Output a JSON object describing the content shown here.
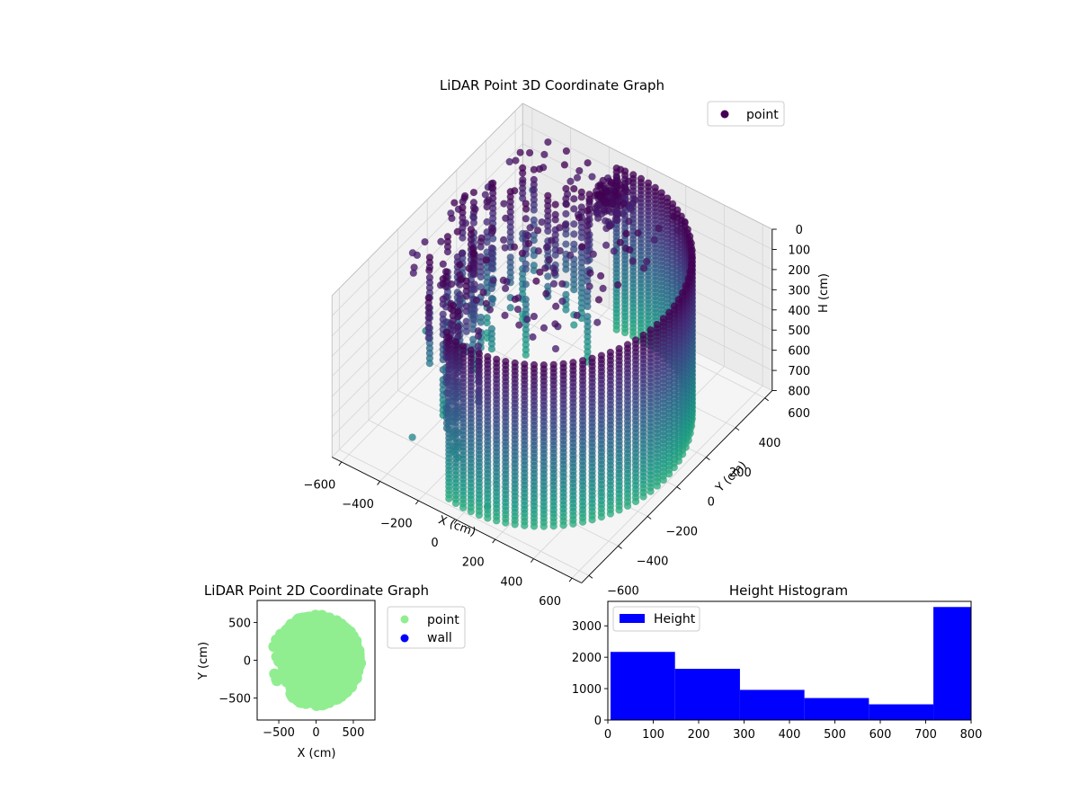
{
  "chart_data": [
    {
      "type": "scatter",
      "projection": "3d",
      "title": "LiDAR Point 3D Coordinate Graph",
      "xlabel": "X (cm)",
      "ylabel": "Y (cm)",
      "zlabel": "H (cm)",
      "xticks": [
        -600,
        -400,
        -200,
        0,
        200,
        400,
        600
      ],
      "yticks": [
        -600,
        -400,
        -200,
        0,
        200,
        400,
        600
      ],
      "zticks": [
        0,
        100,
        200,
        300,
        400,
        500,
        600,
        700,
        800
      ],
      "xlim": [
        -650,
        650
      ],
      "ylim": [
        -650,
        650
      ],
      "zlim": [
        0,
        800
      ],
      "z_inverted": true,
      "colormap": "viridis",
      "legend": {
        "entries": [
          "point"
        ],
        "position": "upper right",
        "colors": [
          "#440154"
        ]
      },
      "grid": true,
      "structure": {
        "main_wall_radius_cm": 580,
        "main_wall_angle_range_deg": [
          -100,
          100
        ],
        "wall_height_range_cm": [
          0,
          800
        ]
      }
    },
    {
      "type": "scatter",
      "title": "LiDAR Point 2D Coordinate Graph",
      "xlabel": "X (cm)",
      "ylabel": "Y (cm)",
      "xticks": [
        -500,
        0,
        500
      ],
      "yticks": [
        -500,
        0,
        500
      ],
      "xlim": [
        -790,
        790
      ],
      "ylim": [
        -790,
        790
      ],
      "series": [
        {
          "name": "point",
          "color": "#90ee90"
        },
        {
          "name": "wall",
          "color": "#0000ff"
        }
      ],
      "legend": {
        "position": "outside right"
      }
    },
    {
      "type": "bar",
      "subtype": "histogram",
      "title": "Height Histogram",
      "bin_edges": [
        0,
        142,
        285,
        427,
        569,
        711,
        853
      ],
      "values": [
        2170,
        1630,
        960,
        700,
        500,
        3600
      ],
      "xticks": [
        0,
        100,
        200,
        300,
        400,
        500,
        600,
        700,
        800
      ],
      "yticks": [
        0,
        1000,
        2000,
        3000
      ],
      "xlim": [
        0,
        800
      ],
      "ylim": [
        0,
        3780
      ],
      "series": [
        {
          "name": "Height",
          "color": "#0000ff"
        }
      ],
      "legend": {
        "position": "upper left"
      }
    }
  ]
}
